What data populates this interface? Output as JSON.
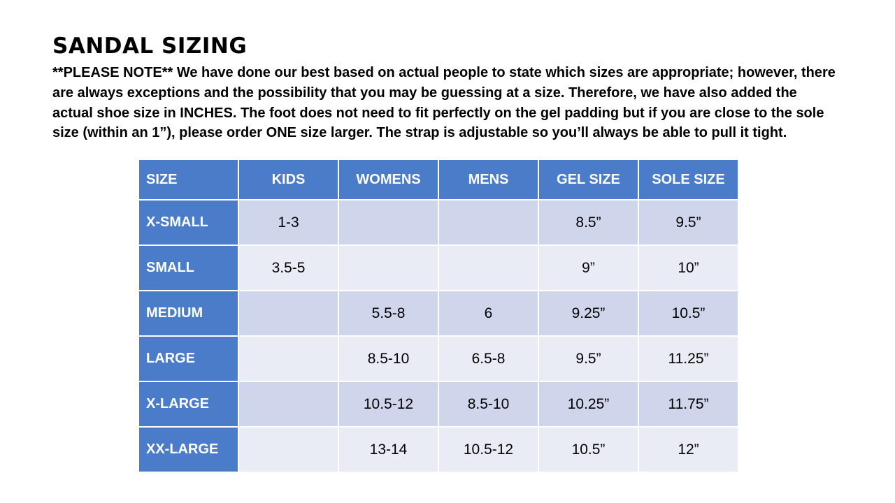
{
  "title": "SANDAL SIZING",
  "note": "**PLEASE NOTE**   We have done our best based on actual people to state which sizes are appropriate; however, there are always exceptions and the possibility that you may be guessing at a size.  Therefore, we have also added the actual shoe size in INCHES.  The foot does not need to fit perfectly on the gel padding but if you are close to the sole size (within an 1”), please order ONE size larger.  The strap is adjustable so you’ll always be able to pull it tight.",
  "colors": {
    "header_blue": "#4A7CC9",
    "band_dark": "#CFD5EA",
    "band_light": "#E9EBF5"
  },
  "table": {
    "headers": [
      "SIZE",
      "KIDS",
      "WOMENS",
      "MENS",
      "GEL SIZE",
      "SOLE SIZE"
    ],
    "rows": [
      {
        "label": "X-SMALL",
        "kids": "1-3",
        "womens": "",
        "mens": "",
        "gel": "8.5”",
        "sole": "9.5”"
      },
      {
        "label": "SMALL",
        "kids": "3.5-5",
        "womens": "",
        "mens": "",
        "gel": "9”",
        "sole": "10”"
      },
      {
        "label": "MEDIUM",
        "kids": "",
        "womens": "5.5-8",
        "mens": "6",
        "gel": "9.25”",
        "sole": "10.5”"
      },
      {
        "label": "LARGE",
        "kids": "",
        "womens": "8.5-10",
        "mens": "6.5-8",
        "gel": "9.5”",
        "sole": "11.25”"
      },
      {
        "label": "X-LARGE",
        "kids": "",
        "womens": "10.5-12",
        "mens": "8.5-10",
        "gel": "10.25”",
        "sole": "11.75”"
      },
      {
        "label": "XX-LARGE",
        "kids": "",
        "womens": "13-14",
        "mens": "10.5-12",
        "gel": "10.5”",
        "sole": "12”"
      }
    ]
  }
}
